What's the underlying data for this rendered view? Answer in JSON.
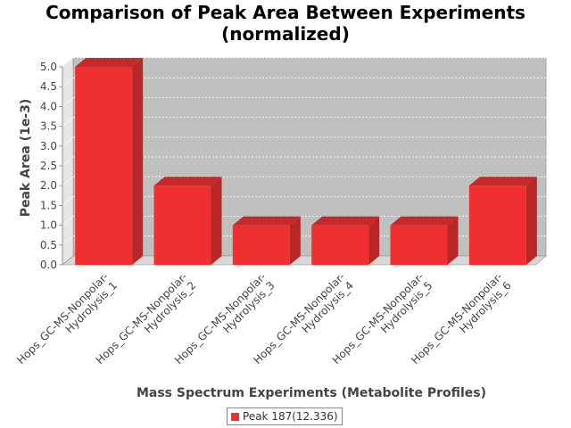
{
  "chart_data": {
    "type": "bar",
    "title_lines": [
      "Comparison of Peak Area Between Experiments",
      "(normalized)"
    ],
    "xlabel": "Mass Spectrum Experiments (Metabolite Profiles)",
    "ylabel": "Peak Area (1e-3)",
    "categories": [
      [
        "Hops_GC-MS-Nonpolar-",
        "Hydrolysis_1"
      ],
      [
        "Hops_GC-MS-Nonpolar-",
        "Hydrolysis_2"
      ],
      [
        "Hops_GC-MS-Nonpolar-",
        "Hydrolysis_3"
      ],
      [
        "Hops_GC-MS-Nonpolar-",
        "Hydrolysis_4"
      ],
      [
        "Hops_GC-MS-Nonpolar-",
        "Hydrolysis_5"
      ],
      [
        "Hops_GC-MS-Nonpolar-",
        "Hydrolysis_6"
      ]
    ],
    "series": [
      {
        "name": "Peak 187(12.336)",
        "values": [
          5.0,
          2.0,
          1.0,
          1.0,
          1.0,
          2.0
        ]
      }
    ],
    "ylim": [
      0,
      5.0
    ],
    "yticks": [
      "0.0",
      "0.5",
      "1.0",
      "1.5",
      "2.0",
      "2.5",
      "3.0",
      "3.5",
      "4.0",
      "4.5",
      "5.0"
    ],
    "grid": true,
    "legend_position": "bottom",
    "colors": {
      "bar_front": "#f03030",
      "bar_side": "#b82626",
      "bar_top": "#c42a2a",
      "plot_back": "#c0c0c0",
      "plot_floor": "#d8d8d8",
      "plot_side": "#e6e6e6",
      "grid": "#ffffff"
    }
  }
}
